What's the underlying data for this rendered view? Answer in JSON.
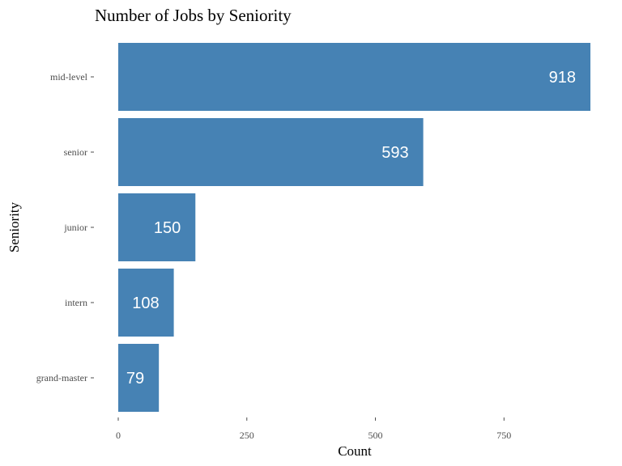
{
  "chart_data": {
    "type": "bar",
    "orientation": "horizontal",
    "title": "Number of Jobs by Seniority",
    "xlabel": "Count",
    "ylabel": "Seniority",
    "categories": [
      "mid-level",
      "senior",
      "junior",
      "intern",
      "grand-master"
    ],
    "values": [
      918,
      593,
      150,
      108,
      79
    ],
    "xlim": [
      0,
      918
    ],
    "xticks": [
      0,
      250,
      500,
      750
    ],
    "grid": false,
    "bar_color": "#4682B4"
  }
}
